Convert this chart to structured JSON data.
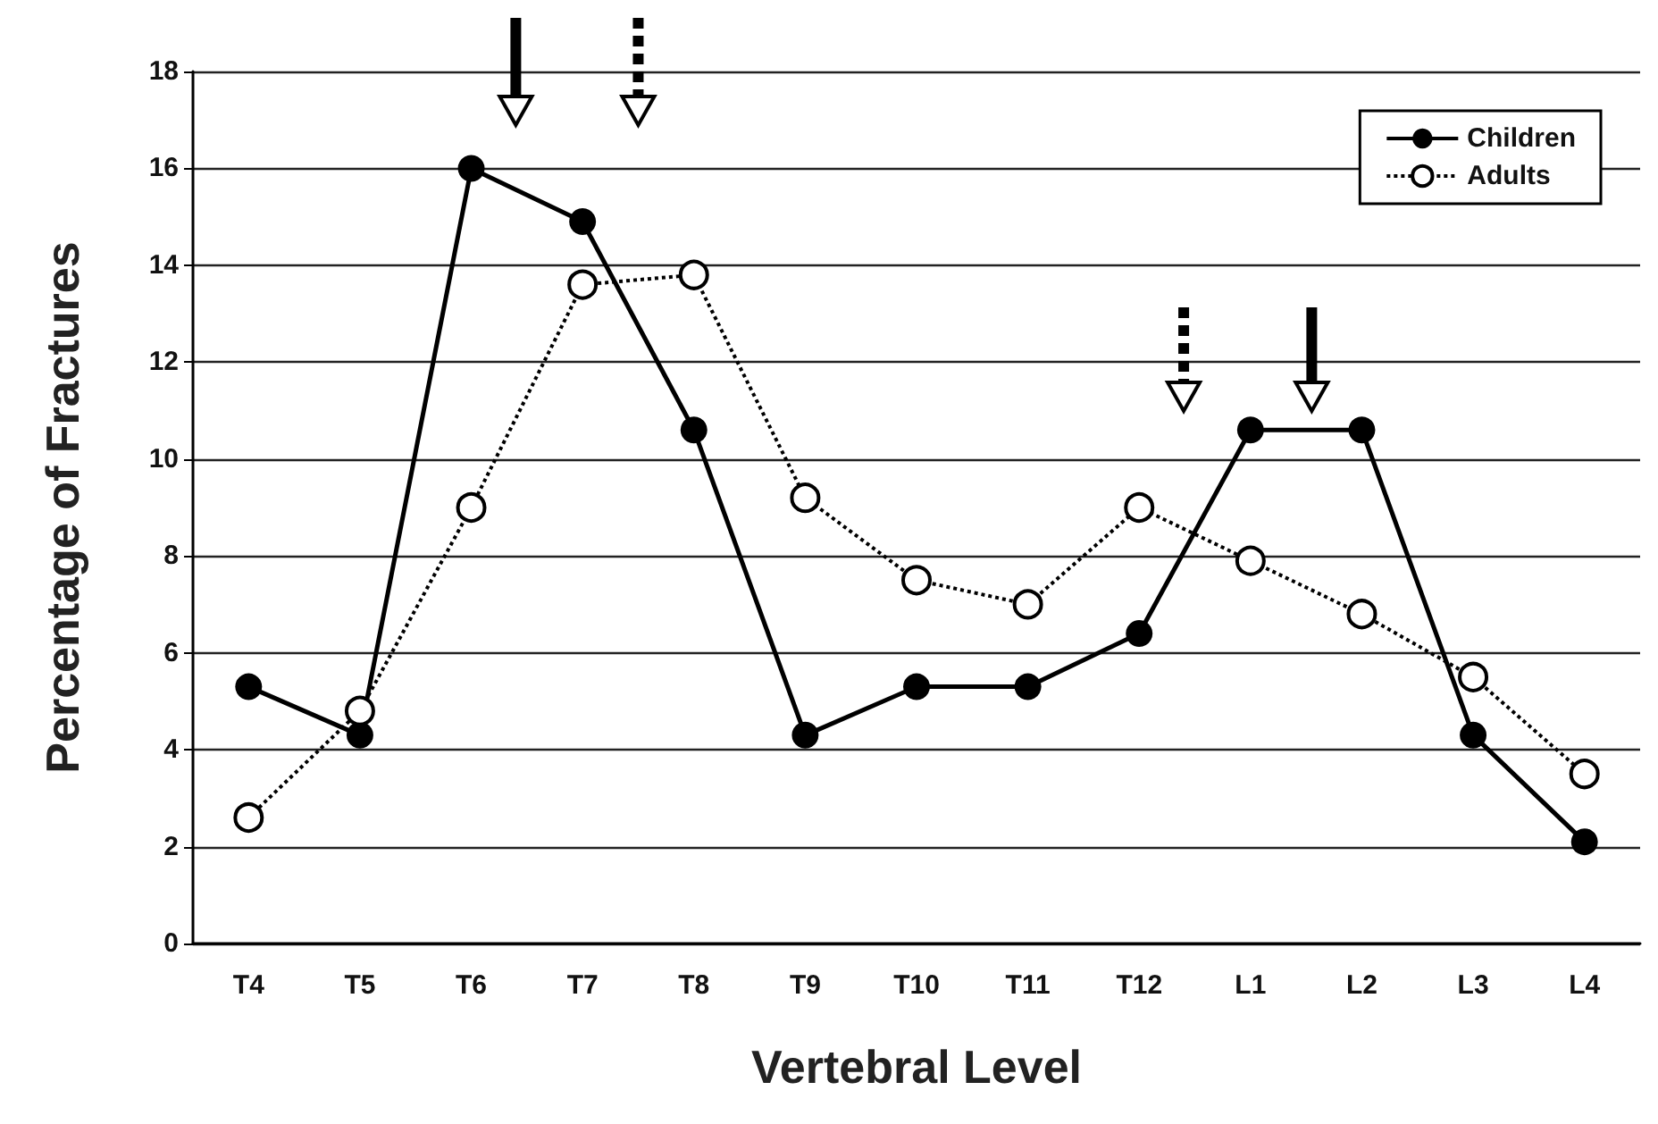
{
  "chart_data": {
    "type": "line",
    "xlabel": "Vertebral Level",
    "ylabel": "Percentage of Fractures",
    "categories": [
      "T4",
      "T5",
      "T6",
      "T7",
      "T8",
      "T9",
      "T10",
      "T11",
      "T12",
      "L1",
      "L2",
      "L3",
      "L4"
    ],
    "series": [
      {
        "name": "Children",
        "color": "#000000",
        "line_style": "solid",
        "values": [
          5.3,
          4.3,
          16.0,
          14.9,
          10.6,
          4.3,
          5.3,
          5.3,
          6.4,
          10.6,
          10.6,
          4.3,
          2.1
        ]
      },
      {
        "name": "Adults",
        "color": "#000000",
        "line_style": "dotted",
        "values": [
          2.6,
          4.8,
          9.0,
          13.6,
          13.8,
          9.2,
          7.5,
          7.0,
          9.0,
          7.9,
          6.8,
          5.5,
          3.5
        ]
      }
    ],
    "ylim": [
      0,
      18
    ],
    "yticks": [
      0,
      2,
      4,
      6,
      8,
      10,
      12,
      14,
      16,
      18
    ],
    "grid": "y",
    "legend": "top right",
    "marker": "circle"
  }
}
